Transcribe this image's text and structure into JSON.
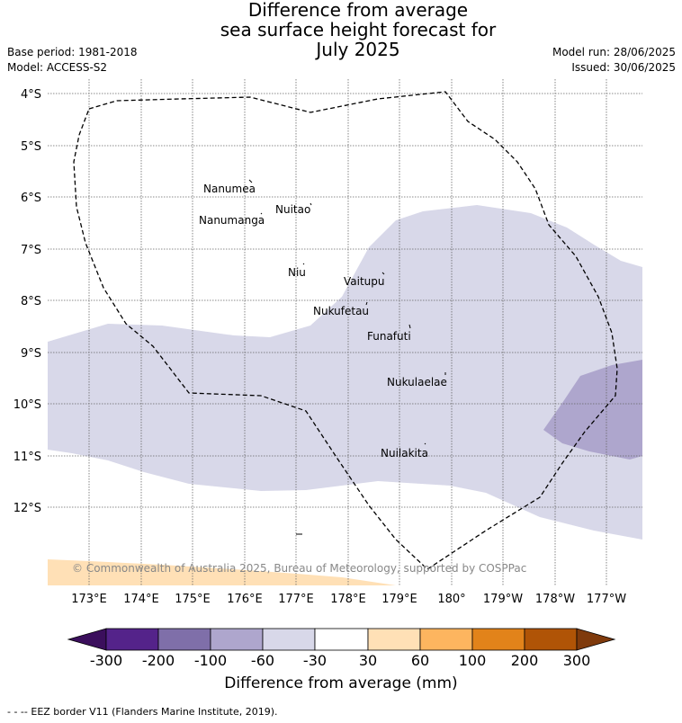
{
  "title_lines": [
    "Difference from average",
    "sea surface height forecast for",
    "July 2025"
  ],
  "base_period": "Base period: 1981-2018",
  "model": "Model: ACCESS-S2",
  "model_run": "Model run: 28/06/2025",
  "issued": "Issued: 30/06/2025",
  "copyright": "© Commonwealth of Australia 2025, Bureau of Meteorology, supported by COSPPac",
  "footer": "- -  -- EEZ border V11 (Flanders Marine Institute, 2019).",
  "lat_ticks": [
    "4°S",
    "5°S",
    "6°S",
    "7°S",
    "8°S",
    "9°S",
    "10°S",
    "11°S",
    "12°S"
  ],
  "lon_ticks": [
    "173°E",
    "174°E",
    "175°E",
    "176°E",
    "177°E",
    "178°E",
    "179°E",
    "180°",
    "179°W",
    "178°W",
    "177°W"
  ],
  "islands": [
    {
      "name": "Nanumea"
    },
    {
      "name": "Nuitao"
    },
    {
      "name": "Nanumanga"
    },
    {
      "name": "Niu"
    },
    {
      "name": "Vaitupu"
    },
    {
      "name": "Nukufetau"
    },
    {
      "name": "Funafuti"
    },
    {
      "name": "Nukulaelae"
    },
    {
      "name": "Nuilakita"
    }
  ],
  "colorbar": {
    "label": "Difference from average (mm)",
    "ticks": [
      "-300",
      "-200",
      "-100",
      "-60",
      "-30",
      "30",
      "60",
      "100",
      "200",
      "300"
    ],
    "colors": {
      "below_-300": "#3b0f5c",
      "-300_-200": "#54238a",
      "-200_-100": "#7f6fa9",
      "-100_-60": "#aea6cd",
      "-60_-30": "#d8d8e9",
      "-30_30": "#ffffff",
      "30_60": "#ffe0b6",
      "60_100": "#fdb55f",
      "100_200": "#e2831a",
      "200_300": "#b05406",
      "above_300": "#7f3a0c"
    }
  }
}
